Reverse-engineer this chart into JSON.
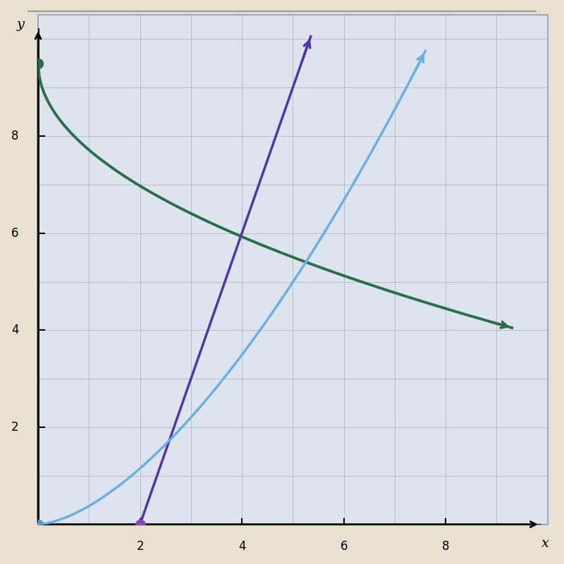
{
  "outer_bg": "#e8e0d0",
  "plot_bg": "#dde4ee",
  "grid_color": "#b0bece",
  "border_color": "#9aaabb",
  "xlim": [
    0,
    10
  ],
  "ylim": [
    0,
    10.5
  ],
  "xticks": [
    2,
    4,
    6,
    8
  ],
  "yticks": [
    2,
    4,
    6,
    8
  ],
  "xlabel": "x",
  "ylabel": "y",
  "green_curve_color": "#2a6e4a",
  "purple_line_color": "#5533aa",
  "blue_curve_color": "#6ab0e0",
  "dot_green_color": "#2a6e4a",
  "dot_purple_color": "#8844bb",
  "dot_blue_color": "#5599cc",
  "figsize": [
    8,
    8
  ],
  "dpi": 100,
  "green_start_y": 9.5,
  "green_end_x": 9.3,
  "green_end_y": 4.05,
  "purple_start_x": 2.0,
  "purple_slope": 3.0,
  "blue_power": 1.6,
  "blue_coeff": 0.38
}
